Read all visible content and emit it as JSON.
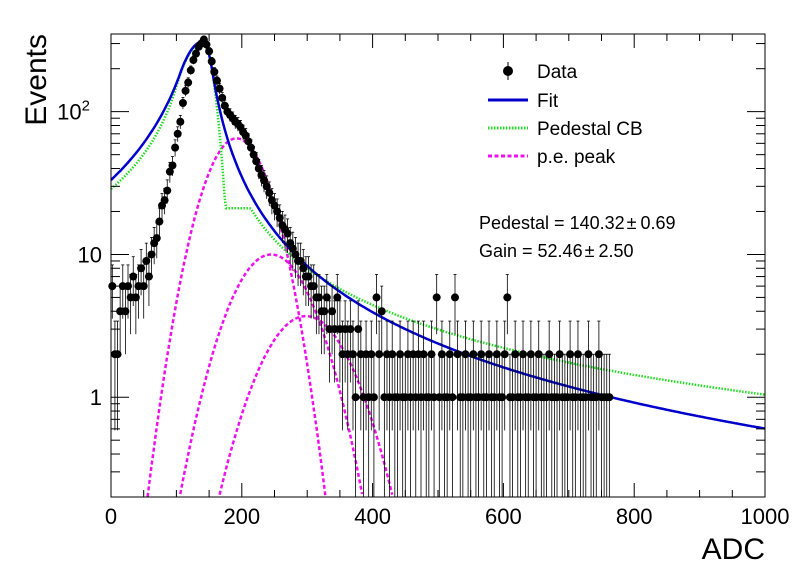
{
  "chart_data": {
    "type": "scatter",
    "title": "",
    "xlabel": "ADC",
    "ylabel": "Events",
    "xlim": [
      0,
      1000
    ],
    "ylim": [
      0.2,
      350
    ],
    "log_y": true,
    "grid": false,
    "legend_position": "top-right",
    "x_ticks": [
      {
        "value": 0,
        "label": "0"
      },
      {
        "value": 200,
        "label": "200"
      },
      {
        "value": 400,
        "label": "400"
      },
      {
        "value": 600,
        "label": "600"
      },
      {
        "value": 800,
        "label": "800"
      },
      {
        "value": 1000,
        "label": "1000"
      }
    ],
    "y_ticks": [
      {
        "value": 1,
        "label": "1"
      },
      {
        "value": 10,
        "label": "10"
      },
      {
        "value": 100,
        "label": "10",
        "exponent": "2"
      }
    ],
    "legend": [
      {
        "label": "Data",
        "style": "marker",
        "color": "#000000"
      },
      {
        "label": "Fit",
        "style": "solid",
        "color": "#0000cc"
      },
      {
        "label": "Pedestal CB",
        "style": "dotted",
        "color": "#22dd22"
      },
      {
        "label": "p.e. peak",
        "style": "dashed",
        "color": "#ee11ee"
      }
    ],
    "annotations": [
      {
        "text": "Pedestal = 140.32",
        "pm": "±",
        "err": "0.69"
      },
      {
        "text": "Gain = 52.46",
        "pm": "±",
        "err": "2.50"
      }
    ],
    "data_points": [
      [
        2,
        6
      ],
      [
        6,
        2
      ],
      [
        10,
        2
      ],
      [
        14,
        4
      ],
      [
        18,
        6
      ],
      [
        22,
        4
      ],
      [
        26,
        6
      ],
      [
        30,
        5
      ],
      [
        34,
        7
      ],
      [
        38,
        5
      ],
      [
        42,
        6
      ],
      [
        46,
        8
      ],
      [
        50,
        6
      ],
      [
        54,
        9
      ],
      [
        58,
        7
      ],
      [
        62,
        10
      ],
      [
        66,
        12
      ],
      [
        70,
        13
      ],
      [
        74,
        17
      ],
      [
        78,
        22
      ],
      [
        82,
        24
      ],
      [
        86,
        28
      ],
      [
        90,
        38
      ],
      [
        94,
        42
      ],
      [
        98,
        56
      ],
      [
        102,
        70
      ],
      [
        106,
        85
      ],
      [
        110,
        115
      ],
      [
        114,
        140
      ],
      [
        118,
        160
      ],
      [
        122,
        195
      ],
      [
        126,
        230
      ],
      [
        130,
        255
      ],
      [
        134,
        285
      ],
      [
        138,
        300
      ],
      [
        142,
        320
      ],
      [
        146,
        295
      ],
      [
        150,
        265
      ],
      [
        154,
        225
      ],
      [
        158,
        190
      ],
      [
        162,
        165
      ],
      [
        166,
        145
      ],
      [
        170,
        125
      ],
      [
        174,
        110
      ],
      [
        178,
        100
      ],
      [
        182,
        95
      ],
      [
        186,
        90
      ],
      [
        190,
        85
      ],
      [
        194,
        82
      ],
      [
        198,
        78
      ],
      [
        202,
        72
      ],
      [
        206,
        68
      ],
      [
        210,
        62
      ],
      [
        214,
        56
      ],
      [
        218,
        50
      ],
      [
        222,
        45
      ],
      [
        226,
        40
      ],
      [
        230,
        36
      ],
      [
        234,
        33
      ],
      [
        238,
        30
      ],
      [
        242,
        27
      ],
      [
        246,
        24
      ],
      [
        250,
        22
      ],
      [
        254,
        20
      ],
      [
        258,
        18
      ],
      [
        262,
        16
      ],
      [
        266,
        15
      ],
      [
        270,
        14
      ],
      [
        274,
        12
      ],
      [
        278,
        11
      ],
      [
        282,
        10
      ],
      [
        286,
        9
      ],
      [
        290,
        9
      ],
      [
        294,
        8
      ],
      [
        298,
        7
      ],
      [
        302,
        7
      ],
      [
        306,
        6
      ],
      [
        310,
        6
      ],
      [
        314,
        5
      ],
      [
        318,
        5
      ],
      [
        322,
        4
      ],
      [
        326,
        4
      ],
      [
        330,
        5
      ],
      [
        334,
        3
      ],
      [
        338,
        4
      ],
      [
        342,
        3
      ],
      [
        346,
        5
      ],
      [
        350,
        3
      ],
      [
        354,
        2
      ],
      [
        358,
        3
      ],
      [
        362,
        2
      ],
      [
        366,
        3
      ],
      [
        370,
        2
      ],
      [
        374,
        1
      ],
      [
        378,
        3
      ],
      [
        382,
        2
      ],
      [
        386,
        1
      ],
      [
        390,
        2
      ],
      [
        394,
        1
      ],
      [
        398,
        2
      ],
      [
        402,
        1
      ],
      [
        406,
        5
      ],
      [
        410,
        2
      ],
      [
        414,
        4
      ],
      [
        418,
        1
      ],
      [
        422,
        2
      ],
      [
        426,
        1
      ],
      [
        430,
        2
      ],
      [
        434,
        1
      ],
      [
        438,
        1
      ],
      [
        442,
        2
      ],
      [
        446,
        1
      ],
      [
        450,
        1
      ],
      [
        454,
        2
      ],
      [
        458,
        1
      ],
      [
        462,
        2
      ],
      [
        466,
        1
      ],
      [
        470,
        2
      ],
      [
        474,
        1
      ],
      [
        478,
        2
      ],
      [
        482,
        1
      ],
      [
        486,
        1
      ],
      [
        490,
        2
      ],
      [
        494,
        1
      ],
      [
        498,
        5
      ],
      [
        502,
        1
      ],
      [
        506,
        2
      ],
      [
        510,
        1
      ],
      [
        514,
        1
      ],
      [
        518,
        2
      ],
      [
        522,
        1
      ],
      [
        526,
        5
      ],
      [
        530,
        2
      ],
      [
        534,
        1
      ],
      [
        538,
        1
      ],
      [
        542,
        2
      ],
      [
        546,
        1
      ],
      [
        550,
        1
      ],
      [
        554,
        2
      ],
      [
        558,
        1
      ],
      [
        562,
        1
      ],
      [
        566,
        2
      ],
      [
        570,
        1
      ],
      [
        574,
        1
      ],
      [
        578,
        2
      ],
      [
        582,
        1
      ],
      [
        586,
        1
      ],
      [
        590,
        2
      ],
      [
        594,
        1
      ],
      [
        598,
        1
      ],
      [
        602,
        2
      ],
      [
        606,
        5
      ],
      [
        610,
        1
      ],
      [
        614,
        1
      ],
      [
        618,
        2
      ],
      [
        622,
        1
      ],
      [
        626,
        1
      ],
      [
        630,
        2
      ],
      [
        634,
        1
      ],
      [
        638,
        1
      ],
      [
        642,
        2
      ],
      [
        646,
        1
      ],
      [
        650,
        1
      ],
      [
        654,
        2
      ],
      [
        658,
        1
      ],
      [
        662,
        1
      ],
      [
        666,
        1
      ],
      [
        670,
        2
      ],
      [
        674,
        1
      ],
      [
        678,
        1
      ],
      [
        682,
        1
      ],
      [
        686,
        2
      ],
      [
        690,
        1
      ],
      [
        694,
        1
      ],
      [
        698,
        1
      ],
      [
        702,
        2
      ],
      [
        706,
        1
      ],
      [
        710,
        1
      ],
      [
        714,
        2
      ],
      [
        718,
        1
      ],
      [
        722,
        1
      ],
      [
        726,
        1
      ],
      [
        730,
        2
      ],
      [
        734,
        1
      ],
      [
        738,
        1
      ],
      [
        742,
        1
      ],
      [
        746,
        2
      ],
      [
        750,
        1
      ],
      [
        754,
        1
      ],
      [
        758,
        1
      ],
      [
        762,
        1
      ]
    ],
    "curves": {
      "fit": {
        "norm": 310,
        "mean": 140.32,
        "sigma_l": 34,
        "sigma_r": 15,
        "alpha": 1.0,
        "n": 1.6
      },
      "pedestal_cb": {
        "norm": 305,
        "mean": 140.32,
        "sigma_l": 34,
        "sigma_r": 15,
        "alpha": 1.2,
        "n": 1.2,
        "cut": 175
      },
      "pe_peaks": [
        {
          "norm": 65,
          "mean": 192,
          "sigma": 40
        },
        {
          "norm": 10,
          "mean": 245,
          "sigma": 50
        },
        {
          "norm": 3.7,
          "mean": 298,
          "sigma": 55
        }
      ]
    }
  }
}
